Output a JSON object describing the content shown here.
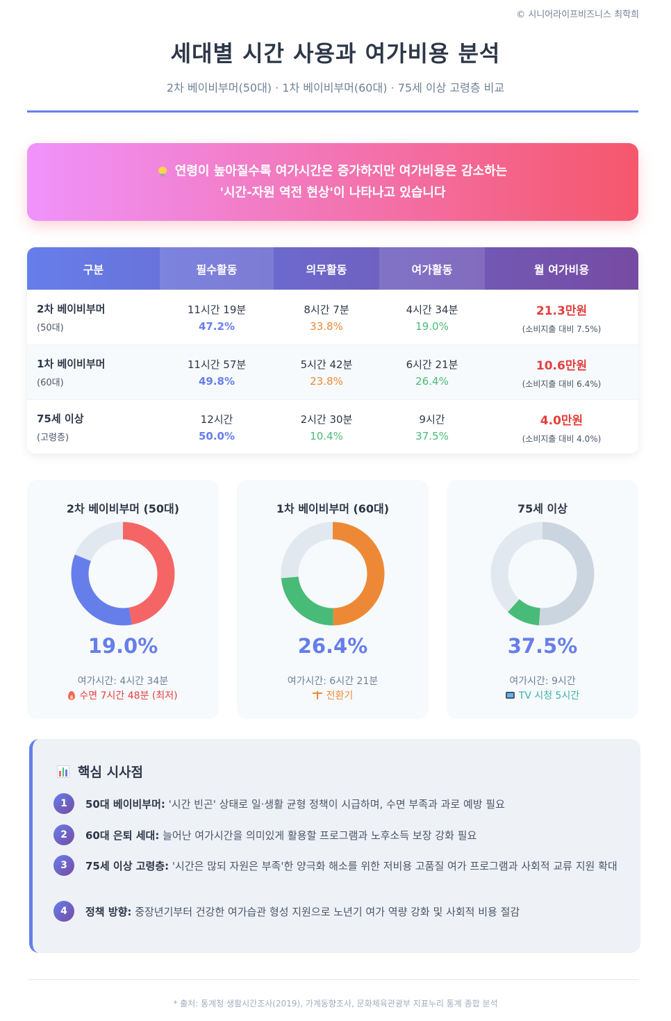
{
  "header": {
    "copyright": "© 시니어라이프비즈니스 최학희",
    "title": "세대별 시간 사용과 여가비용 분석",
    "subtitle": "2차 베이비부머(50대) · 1차 베이비부머(60대) · 75세 이상 고령층 비교"
  },
  "banner": {
    "line1": "연령이 높아질수록 여가시간은 증가하지만 여가비용은 감소하는",
    "line2": "'시간-자원 역전 현상'이 나타나고 있습니다"
  },
  "table": {
    "headers": [
      "구분",
      "필수활동",
      "의무활동",
      "여가활동",
      "월 여가비용"
    ],
    "rows": [
      {
        "name": "2차 베이비부머",
        "sub": "(50대)",
        "essential": "11시간 19분",
        "essential_pct": "47.2%",
        "obligatory": "8시간 7분",
        "obligatory_pct": "33.8%",
        "leisure": "4시간 34분",
        "leisure_pct": "19.0%",
        "cost": "21.3만원",
        "cost_sub": "(소비지출 대비 7.5%)"
      },
      {
        "name": "1차 베이비부머",
        "sub": "(60대)",
        "essential": "11시간 57분",
        "essential_pct": "49.8%",
        "obligatory": "5시간 42분",
        "obligatory_pct": "23.8%",
        "leisure": "6시간 21분",
        "leisure_pct": "26.4%",
        "cost": "10.6만원",
        "cost_sub": "(소비지출 대비 6.4%)"
      },
      {
        "name": "75세 이상",
        "sub": "(고령층)",
        "essential": "12시간",
        "essential_pct": "50.0%",
        "obligatory": "2시간 30분",
        "obligatory_pct": "10.4%",
        "leisure": "9시간",
        "leisure_pct": "37.5%",
        "cost": "4.0만원",
        "cost_sub": "(소비지출 대비 4.0%)"
      }
    ]
  },
  "cards": [
    {
      "title": "2차 베이비부머 (50대)",
      "pct": "19.0%",
      "leisure": "여가시간: 4시간 34분",
      "note": "수면 7시간 48분 (최저)",
      "note_icon": "fire-icon",
      "note_color": "#e53e3e"
    },
    {
      "title": "1차 베이비부머 (60대)",
      "pct": "26.4%",
      "leisure": "여가시간: 6시간 21분",
      "note": "전환기",
      "note_icon": "scale-icon",
      "note_color": "#ed8936"
    },
    {
      "title": "75세 이상",
      "pct": "37.5%",
      "leisure": "여가시간: 9시간",
      "note": "TV 시청 5시간",
      "note_icon": "tv-icon",
      "note_color": "#38b2ac"
    }
  ],
  "chart_data": [
    {
      "type": "pie",
      "title": "2차 베이비부머 (50대)",
      "categories": [
        "필수활동",
        "의무활동",
        "여가활동"
      ],
      "values": [
        47.2,
        33.8,
        19.0
      ],
      "colors": [
        "#f56565",
        "#667eea",
        "#e2e8f0"
      ]
    },
    {
      "type": "pie",
      "title": "1차 베이비부머 (60대)",
      "categories": [
        "필수활동",
        "의무활동",
        "여가활동"
      ],
      "values": [
        49.8,
        23.8,
        26.4
      ],
      "colors": [
        "#ed8936",
        "#48bb78",
        "#e2e8f0"
      ]
    },
    {
      "type": "pie",
      "title": "75세 이상",
      "categories": [
        "필수활동",
        "의무활동",
        "여가활동"
      ],
      "values": [
        50.0,
        10.4,
        37.5
      ],
      "colors": [
        "#cbd5e0",
        "#48bb78",
        "#e2e8f0"
      ]
    }
  ],
  "insights": {
    "title": "핵심 시사점",
    "items": [
      {
        "num": "1",
        "label": "50대 베이비부머:",
        "text": " '시간 빈곤' 상태로 일·생활 균형 정책이 시급하며, 수면 부족과 과로 예방 필요"
      },
      {
        "num": "2",
        "label": "60대 은퇴 세대:",
        "text": " 늘어난 여가시간을 의미있게 활용할 프로그램과 노후소득 보장 강화 필요"
      },
      {
        "num": "3",
        "label": "75세 이상 고령층:",
        "text": " '시간은 많되 자원은 부족'한 양극화 해소를 위한 저비용 고품질 여가 프로그램과 사회적 교류 지원 확대"
      },
      {
        "num": "4",
        "label": "정책 방향:",
        "text": " 중장년기부터 건강한 여가습관 형성 지원으로 노년기 여가 역량 강화 및 사회적 비용 절감"
      }
    ]
  },
  "footer": "* 출처: 통계청 생활시간조사(2019), 가계동향조사, 문화체육관광부 지표누리 통계 종합 분석"
}
